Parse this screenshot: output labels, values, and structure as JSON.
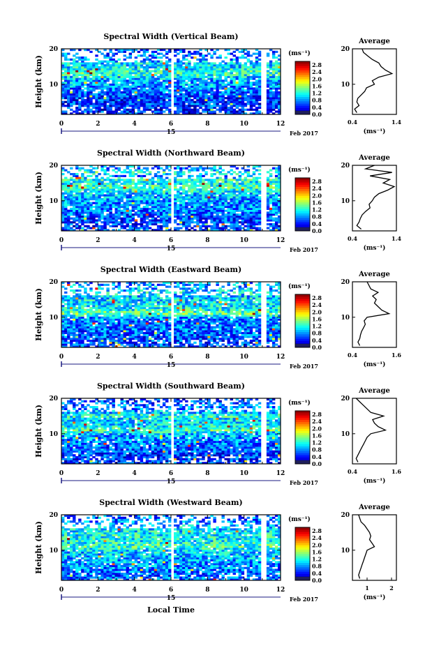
{
  "figure": {
    "xlabel": "Local Time",
    "date_text": "Feb 2017",
    "colorbar_unit": "(ms⁻¹)",
    "average_title": "Average"
  },
  "chart_data": [
    {
      "type": "heatmap",
      "title": "Spectral Width (Vertical Beam)",
      "ylabel": "Height (km)",
      "xlabel": "Local Time",
      "xlim": [
        0,
        12
      ],
      "xticks": [
        0,
        2,
        4,
        6,
        8,
        10,
        12
      ],
      "xtick_labels": [
        "0",
        "2",
        "4",
        "6",
        "8",
        "10",
        "12"
      ],
      "day_label": "15",
      "ylim": [
        1.5,
        20
      ],
      "yticks": [
        10,
        20
      ],
      "colorbar": {
        "unit": "(ms⁻¹)",
        "ticks": [
          "0.0",
          "0.4",
          "0.8",
          "1.2",
          "1.6",
          "2.0",
          "2.4",
          "2.8"
        ],
        "range": [
          0,
          3.0
        ]
      },
      "profile": {
        "title": "Average",
        "xlabel": "(ms⁻¹)",
        "xlim": [
          0.4,
          1.4
        ],
        "xtick_labels": [
          "0.4",
          "1.4"
        ],
        "heights": [
          2,
          3,
          4,
          5,
          6,
          7,
          8,
          9,
          10,
          11,
          12,
          13,
          14,
          15,
          16,
          17,
          18,
          19,
          20
        ],
        "values": [
          0.5,
          0.45,
          0.55,
          0.5,
          0.52,
          0.6,
          0.68,
          0.72,
          0.9,
          0.85,
          1.0,
          1.3,
          1.15,
          1.05,
          1.0,
          0.85,
          0.75,
          0.65,
          0.62
        ]
      }
    },
    {
      "type": "heatmap",
      "title": "Spectral Width (Northward Beam)",
      "ylabel": "Height (km)",
      "xlabel": "Local Time",
      "xlim": [
        0,
        12
      ],
      "xticks": [
        0,
        2,
        4,
        6,
        8,
        10,
        12
      ],
      "xtick_labels": [
        "0",
        "2",
        "4",
        "6",
        "8",
        "10",
        "12"
      ],
      "day_label": "15",
      "ylim": [
        1.5,
        20
      ],
      "yticks": [
        10,
        20
      ],
      "colorbar": {
        "unit": "(ms⁻¹)",
        "ticks": [
          "0.0",
          "0.4",
          "0.8",
          "1.2",
          "1.6",
          "2.0",
          "2.4",
          "2.8"
        ],
        "range": [
          0,
          3.0
        ]
      },
      "profile": {
        "title": "Average",
        "xlabel": "(ms⁻¹)",
        "xlim": [
          0.4,
          1.4
        ],
        "xtick_labels": [
          "0.4",
          "1.4"
        ],
        "heights": [
          2,
          3,
          4,
          5,
          6,
          7,
          8,
          9,
          10,
          11,
          12,
          13,
          14,
          15,
          16,
          17,
          18,
          19,
          20
        ],
        "values": [
          0.6,
          0.5,
          0.55,
          0.58,
          0.62,
          0.7,
          0.8,
          0.78,
          0.85,
          0.9,
          1.0,
          1.2,
          1.35,
          1.1,
          1.25,
          0.8,
          1.3,
          0.7,
          0.9
        ]
      }
    },
    {
      "type": "heatmap",
      "title": "Spectral Width (Eastward Beam)",
      "ylabel": "Height (km)",
      "xlabel": "Local Time",
      "xlim": [
        0,
        12
      ],
      "xticks": [
        0,
        2,
        4,
        6,
        8,
        10,
        12
      ],
      "xtick_labels": [
        "0",
        "2",
        "4",
        "6",
        "8",
        "10",
        "12"
      ],
      "day_label": "15",
      "ylim": [
        1.5,
        20
      ],
      "yticks": [
        10,
        20
      ],
      "colorbar": {
        "unit": "(ms⁻¹)",
        "ticks": [
          "0.0",
          "0.4",
          "0.8",
          "1.2",
          "1.6",
          "2.0",
          "2.4",
          "2.8"
        ],
        "range": [
          0,
          3.0
        ]
      },
      "profile": {
        "title": "Average",
        "xlabel": "(ms⁻¹)",
        "xlim": [
          0.4,
          1.6
        ],
        "xtick_labels": [
          "0.4",
          "1.6"
        ],
        "heights": [
          2,
          3,
          4,
          5,
          6,
          7,
          8,
          9,
          10,
          11,
          12,
          13,
          14,
          15,
          16,
          17,
          18,
          19,
          20
        ],
        "values": [
          0.6,
          0.55,
          0.6,
          0.62,
          0.65,
          0.7,
          0.75,
          0.72,
          0.8,
          1.4,
          1.2,
          1.1,
          1.0,
          1.05,
          0.95,
          1.1,
          0.9,
          0.85,
          0.8
        ]
      }
    },
    {
      "type": "heatmap",
      "title": "Spectral Width (Southward Beam)",
      "ylabel": "Height (km)",
      "xlabel": "Local Time",
      "xlim": [
        0,
        12
      ],
      "xticks": [
        0,
        2,
        4,
        6,
        8,
        10,
        12
      ],
      "xtick_labels": [
        "0",
        "2",
        "4",
        "6",
        "8",
        "10",
        "12"
      ],
      "day_label": "15",
      "ylim": [
        1.5,
        20
      ],
      "yticks": [
        10,
        20
      ],
      "colorbar": {
        "unit": "(ms⁻¹)",
        "ticks": [
          "0.0",
          "0.4",
          "0.8",
          "1.2",
          "1.6",
          "2.0",
          "2.4",
          "2.8"
        ],
        "range": [
          0,
          3.0
        ]
      },
      "profile": {
        "title": "Average",
        "xlabel": "(ms⁻¹)",
        "xlim": [
          0.4,
          1.6
        ],
        "xtick_labels": [
          "0.4",
          "1.6"
        ],
        "heights": [
          2,
          3,
          4,
          5,
          6,
          7,
          8,
          9,
          10,
          11,
          12,
          13,
          14,
          15,
          16,
          17,
          18,
          19,
          20
        ],
        "values": [
          0.55,
          0.5,
          0.55,
          0.6,
          0.65,
          0.7,
          0.75,
          0.8,
          0.9,
          1.3,
          1.1,
          1.0,
          0.95,
          1.25,
          0.9,
          0.8,
          0.7,
          0.6,
          0.5
        ]
      }
    },
    {
      "type": "heatmap",
      "title": "Spectral Width (Westward Beam)",
      "ylabel": "Height (km)",
      "xlabel": "Local Time",
      "xlim": [
        0,
        12
      ],
      "xticks": [
        0,
        2,
        4,
        6,
        8,
        10,
        12
      ],
      "xtick_labels": [
        "0",
        "2",
        "4",
        "6",
        "8",
        "10",
        "12"
      ],
      "day_label": "15",
      "ylim": [
        1.5,
        20
      ],
      "yticks": [
        10,
        20
      ],
      "colorbar": {
        "unit": "(ms⁻¹)",
        "ticks": [
          "0.0",
          "0.4",
          "0.8",
          "1.2",
          "1.6",
          "2.0",
          "2.4",
          "2.8"
        ],
        "range": [
          0,
          3.0
        ]
      },
      "profile": {
        "title": "Average",
        "xlabel": "(ms⁻¹)",
        "xlim": [
          0.4,
          2.2
        ],
        "xtick_labels": [
          "1",
          "2"
        ],
        "heights": [
          2,
          3,
          4,
          5,
          6,
          7,
          8,
          9,
          10,
          11,
          12,
          13,
          14,
          15,
          16,
          17,
          18,
          19,
          20
        ],
        "values": [
          0.7,
          0.65,
          0.7,
          0.75,
          0.8,
          0.85,
          0.9,
          0.95,
          1.0,
          1.3,
          1.2,
          1.1,
          1.15,
          1.1,
          1.0,
          0.9,
          0.75,
          0.7,
          0.65
        ]
      }
    }
  ]
}
